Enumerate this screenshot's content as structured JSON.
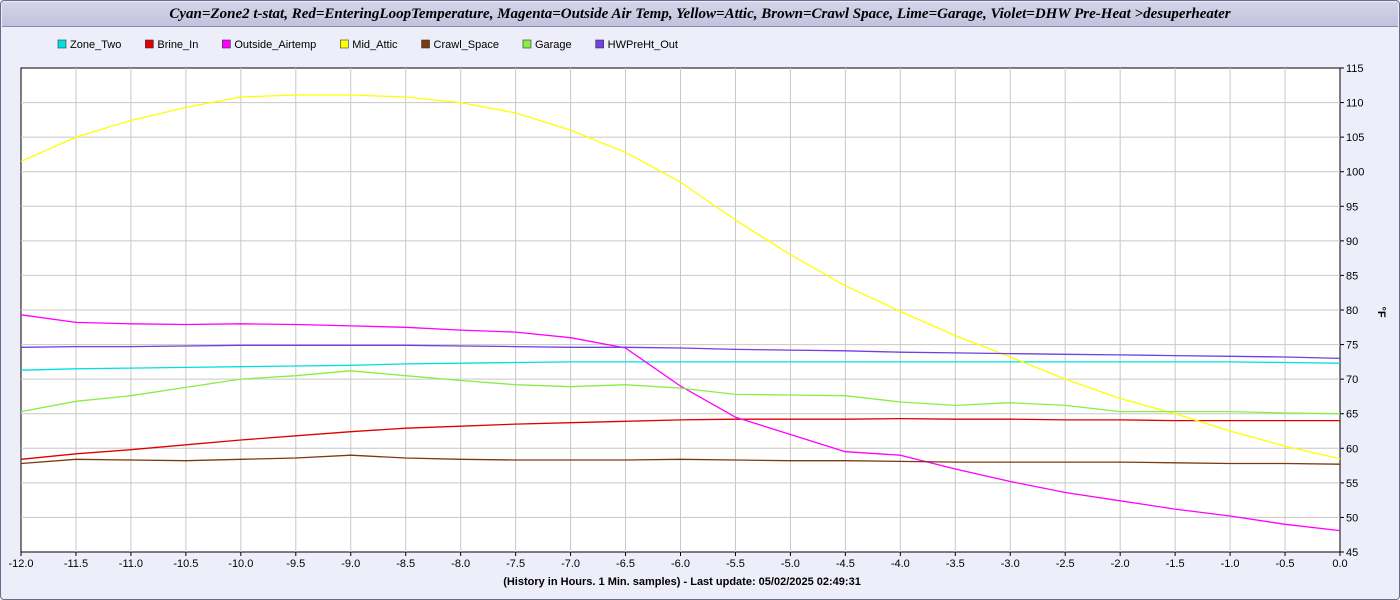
{
  "chart_data": {
    "type": "line",
    "title": "Cyan=Zone2 t-stat, Red=EnteringLoopTemperature, Magenta=Outside Air Temp, Yellow=Attic, Brown=Crawl Space, Lime=Garage, Violet=DHW Pre-Heat >desuperheater",
    "xlabel": "(History in Hours. 1 Min. samples) - Last update: 05/02/2025 02:49:31",
    "ylabel": "°F",
    "xlim": [
      -12.0,
      0.0
    ],
    "ylim": [
      45,
      115
    ],
    "x_ticks": [
      "-12.0",
      "-11.5",
      "-11.0",
      "-10.5",
      "-10.0",
      "-9.5",
      "-9.0",
      "-8.5",
      "-8.0",
      "-7.5",
      "-7.0",
      "-6.5",
      "-6.0",
      "-5.5",
      "-5.0",
      "-4.5",
      "-4.0",
      "-3.5",
      "-3.0",
      "-2.5",
      "-2.0",
      "-1.5",
      "-1.0",
      "-0.5",
      "0.0"
    ],
    "y_ticks": [
      "45",
      "50",
      "55",
      "60",
      "65",
      "70",
      "75",
      "80",
      "85",
      "90",
      "95",
      "100",
      "105",
      "110",
      "115"
    ],
    "grid": true,
    "legend_position": "top-left",
    "x": [
      -12.0,
      -11.5,
      -11.0,
      -10.5,
      -10.0,
      -9.5,
      -9.0,
      -8.5,
      -8.0,
      -7.5,
      -7.0,
      -6.5,
      -6.0,
      -5.5,
      -5.0,
      -4.5,
      -4.0,
      -3.5,
      -3.0,
      -2.5,
      -2.0,
      -1.5,
      -1.0,
      -0.5,
      0.0
    ],
    "series": [
      {
        "name": "Zone_Two",
        "color": "#00e0e0",
        "values": [
          71.3,
          71.5,
          71.6,
          71.7,
          71.8,
          71.9,
          72.0,
          72.2,
          72.3,
          72.4,
          72.5,
          72.5,
          72.5,
          72.5,
          72.5,
          72.5,
          72.5,
          72.5,
          72.5,
          72.5,
          72.5,
          72.5,
          72.5,
          72.4,
          72.3
        ]
      },
      {
        "name": "Brine_In",
        "color": "#e00000",
        "values": [
          58.4,
          59.2,
          59.8,
          60.5,
          61.2,
          61.8,
          62.4,
          62.9,
          63.2,
          63.5,
          63.7,
          63.9,
          64.1,
          64.2,
          64.2,
          64.2,
          64.3,
          64.2,
          64.2,
          64.1,
          64.1,
          64.0,
          64.0,
          64.0,
          64.0
        ]
      },
      {
        "name": "Outside_Airtemp",
        "color": "#ff00ff",
        "values": [
          79.3,
          78.2,
          78.0,
          77.9,
          78.0,
          77.9,
          77.7,
          77.5,
          77.1,
          76.8,
          76.0,
          74.5,
          69.0,
          64.5,
          62.0,
          59.5,
          59.0,
          57.0,
          55.2,
          53.6,
          52.4,
          51.2,
          50.2,
          49.0,
          48.1
        ]
      },
      {
        "name": "Mid_Attic",
        "color": "#ffff00",
        "values": [
          101.5,
          105.0,
          107.4,
          109.3,
          110.8,
          111.1,
          111.1,
          110.8,
          110.0,
          108.5,
          106.0,
          102.8,
          98.5,
          93.0,
          88.0,
          83.5,
          79.8,
          76.3,
          73.2,
          70.0,
          67.2,
          65.0,
          62.5,
          60.3,
          58.5
        ]
      },
      {
        "name": "Crawl_Space",
        "color": "#7a3a10",
        "values": [
          57.8,
          58.4,
          58.3,
          58.2,
          58.4,
          58.6,
          59.0,
          58.6,
          58.4,
          58.3,
          58.3,
          58.3,
          58.4,
          58.3,
          58.2,
          58.2,
          58.1,
          58.0,
          58.0,
          58.0,
          58.0,
          57.9,
          57.8,
          57.8,
          57.7
        ]
      },
      {
        "name": "Garage",
        "color": "#88ee44",
        "values": [
          65.3,
          66.8,
          67.6,
          68.8,
          70.0,
          70.5,
          71.2,
          70.5,
          69.8,
          69.2,
          68.9,
          69.2,
          68.7,
          67.8,
          67.7,
          67.6,
          66.7,
          66.2,
          66.6,
          66.2,
          65.3,
          65.3,
          65.3,
          65.1,
          65.0
        ]
      },
      {
        "name": "HWPreHt_Out",
        "color": "#7040e0",
        "values": [
          74.6,
          74.7,
          74.7,
          74.8,
          74.9,
          74.9,
          74.9,
          74.9,
          74.8,
          74.7,
          74.6,
          74.6,
          74.5,
          74.3,
          74.2,
          74.1,
          73.9,
          73.8,
          73.7,
          73.6,
          73.5,
          73.4,
          73.3,
          73.2,
          73.0
        ]
      }
    ]
  }
}
